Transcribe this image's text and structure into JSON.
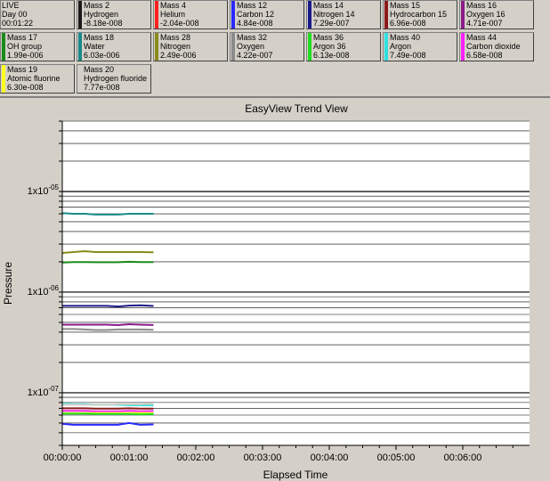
{
  "colors": {
    "panel_bg": "#d4d0c8",
    "plot_bg": "#ffffff",
    "grid": "#000000"
  },
  "live_tile": {
    "line1": "LIVE",
    "line2": "Day 00",
    "line3": "00:01:22"
  },
  "tiles": [
    {
      "mass": "Mass 2",
      "name": "Hydrogen",
      "value": "-8.18e-008",
      "color": "#1a1a1a"
    },
    {
      "mass": "Mass 4",
      "name": "Helium",
      "value": "-2.04e-008",
      "color": "#ff2020"
    },
    {
      "mass": "Mass 12",
      "name": "Carbon 12",
      "value": "4.84e-008",
      "color": "#2a2aff"
    },
    {
      "mass": "Mass 14",
      "name": "Nitrogen 14",
      "value": "7.29e-007",
      "color": "#1a1a8a"
    },
    {
      "mass": "Mass 15",
      "name": "Hydrocarbon 15",
      "value": "6.96e-008",
      "color": "#8a1a1a"
    },
    {
      "mass": "Mass 16",
      "name": "Oxygen 16",
      "value": "4.71e-007",
      "color": "#8a1a8a"
    },
    {
      "mass": "Mass 17",
      "name": "OH group",
      "value": "1.99e-006",
      "color": "#1a8a1a"
    },
    {
      "mass": "Mass 18",
      "name": "Water",
      "value": "6.03e-006",
      "color": "#1a8a8a"
    },
    {
      "mass": "Mass 28",
      "name": "Nitrogen",
      "value": "2.49e-006",
      "color": "#8a8a1a"
    },
    {
      "mass": "Mass 32",
      "name": "Oxygen",
      "value": "4.22e-007",
      "color": "#8a8a8a"
    },
    {
      "mass": "Mass 36",
      "name": "Argon 36",
      "value": "6.13e-008",
      "color": "#20dd20"
    },
    {
      "mass": "Mass 40",
      "name": "Argon",
      "value": "7.49e-008",
      "color": "#30e0e0"
    },
    {
      "mass": "Mass 44",
      "name": "Carbon dioxide",
      "value": "6.58e-008",
      "color": "#ff20ff"
    },
    {
      "mass": "Mass 19",
      "name": "Atomic fluorine",
      "value": "6.30e-008",
      "color": "#ffff20"
    },
    {
      "mass": "Mass 20",
      "name": "Hydrogen fluoride",
      "value": "7.77e-008",
      "color": "#d4d0c8"
    }
  ],
  "chart_data": {
    "type": "line",
    "title": "EasyView Trend View",
    "xlabel": "Elapsed Time",
    "ylabel": "Pressure",
    "y_scale": "log",
    "ylim": [
      3e-08,
      5e-05
    ],
    "xlim_seconds": [
      0,
      420
    ],
    "x_tick_labels": [
      "00:00:00",
      "00:01:00",
      "00:02:00",
      "00:03:00",
      "00:04:00",
      "00:05:00",
      "00:06:00"
    ],
    "x_ticks_seconds": [
      0,
      60,
      120,
      180,
      240,
      300,
      360
    ],
    "y_tick_labels": [
      {
        "mantissa": "1x10",
        "exp": "-05",
        "value": 1e-05
      },
      {
        "mantissa": "1x10",
        "exp": "-06",
        "value": 1e-06
      },
      {
        "mantissa": "1x10",
        "exp": "-07",
        "value": 1e-07
      }
    ],
    "grid": true,
    "legend": "none",
    "x_seconds": [
      0,
      10,
      20,
      30,
      40,
      50,
      60,
      70,
      82
    ],
    "series": [
      {
        "color": "#1a8a8a",
        "values": [
          6.1e-06,
          6e-06,
          6e-06,
          5.9e-06,
          5.9e-06,
          5.9e-06,
          6e-06,
          6e-06,
          6e-06
        ]
      },
      {
        "color": "#8a8a1a",
        "values": [
          2.45e-06,
          2.5e-06,
          2.55e-06,
          2.5e-06,
          2.5e-06,
          2.5e-06,
          2.5e-06,
          2.5e-06,
          2.49e-06
        ]
      },
      {
        "color": "#1a8a1a",
        "values": [
          1.97e-06,
          1.99e-06,
          1.99e-06,
          1.98e-06,
          1.98e-06,
          1.98e-06,
          2e-06,
          1.99e-06,
          1.99e-06
        ]
      },
      {
        "color": "#1a1a8a",
        "values": [
          7.3e-07,
          7.3e-07,
          7.3e-07,
          7.3e-07,
          7.3e-07,
          7.2e-07,
          7.35e-07,
          7.4e-07,
          7.29e-07
        ]
      },
      {
        "color": "#8a1a8a",
        "values": [
          4.75e-07,
          4.75e-07,
          4.75e-07,
          4.75e-07,
          4.75e-07,
          4.7e-07,
          4.8e-07,
          4.75e-07,
          4.71e-07
        ]
      },
      {
        "color": "#8a8a8a",
        "values": [
          4.3e-07,
          4.3e-07,
          4.25e-07,
          4.2e-07,
          4.2e-07,
          4.25e-07,
          4.25e-07,
          4.25e-07,
          4.22e-07
        ]
      },
      {
        "color": "#30e0e0",
        "values": [
          7.8e-08,
          7.7e-08,
          7.7e-08,
          7.6e-08,
          7.6e-08,
          7.6e-08,
          7.5e-08,
          7.5e-08,
          7.49e-08
        ]
      },
      {
        "color": "#d4d0c8",
        "values": [
          7.6e-08,
          7.6e-08,
          7.6e-08,
          7.6e-08,
          7.6e-08,
          7.7e-08,
          7.7e-08,
          7.7e-08,
          7.77e-08
        ]
      },
      {
        "color": "#8a1a1a",
        "values": [
          7e-08,
          7e-08,
          7e-08,
          6.95e-08,
          6.95e-08,
          6.95e-08,
          7e-08,
          6.95e-08,
          6.96e-08
        ]
      },
      {
        "color": "#ff20ff",
        "values": [
          6.6e-08,
          6.6e-08,
          6.6e-08,
          6.55e-08,
          6.55e-08,
          6.55e-08,
          6.6e-08,
          6.55e-08,
          6.58e-08
        ]
      },
      {
        "color": "#ffff20",
        "values": [
          6.3e-08,
          6.3e-08,
          6.3e-08,
          6.3e-08,
          6.3e-08,
          6.3e-08,
          6.3e-08,
          6.3e-08,
          6.3e-08
        ]
      },
      {
        "color": "#20dd20",
        "values": [
          6.2e-08,
          6.2e-08,
          6.2e-08,
          6.15e-08,
          6.15e-08,
          6.15e-08,
          6.15e-08,
          6.1e-08,
          6.13e-08
        ]
      },
      {
        "color": "#2a2aff",
        "values": [
          4.9e-08,
          4.8e-08,
          4.8e-08,
          4.8e-08,
          4.8e-08,
          4.8e-08,
          5e-08,
          4.8e-08,
          4.84e-08
        ]
      }
    ]
  }
}
